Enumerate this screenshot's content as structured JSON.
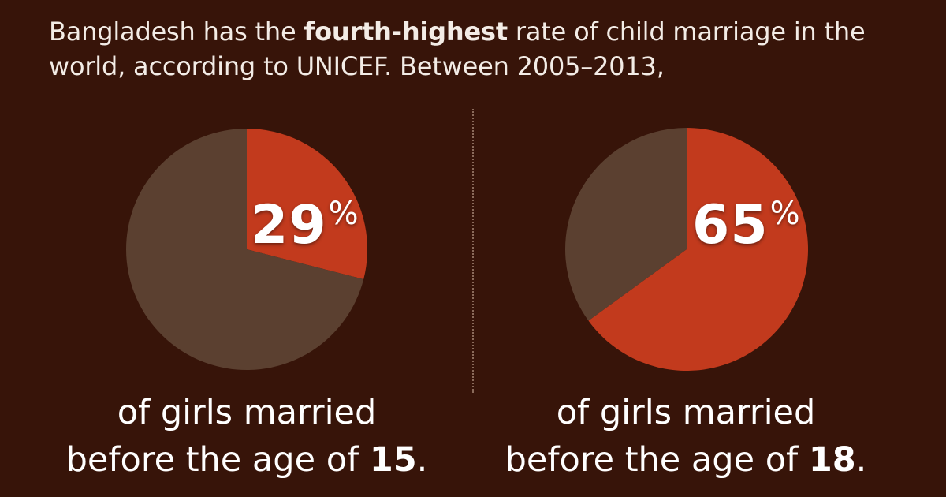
{
  "intro": {
    "part1": "Bangladesh has the ",
    "bold": "fourth-highest",
    "part2": " rate of child marriage in the world, according to UNICEF. Between 2005–2013,"
  },
  "colors": {
    "background": "#371409",
    "highlight": "#c23a1d",
    "remainder": "#5b4030"
  },
  "chart_data": [
    {
      "type": "pie",
      "slices": [
        {
          "label": "married before 15",
          "value": 29
        },
        {
          "label": "remainder",
          "value": 71
        }
      ],
      "display_value": "29",
      "unit": "%",
      "caption_line1": "of girls married",
      "caption_line2_prefix": "before the age of ",
      "caption_age": "15",
      "caption_line2_suffix": "."
    },
    {
      "type": "pie",
      "slices": [
        {
          "label": "married before 18",
          "value": 65
        },
        {
          "label": "remainder",
          "value": 35
        }
      ],
      "display_value": "65",
      "unit": "%",
      "caption_line1": "of girls married",
      "caption_line2_prefix": "before the age of ",
      "caption_age": "18",
      "caption_line2_suffix": "."
    }
  ]
}
